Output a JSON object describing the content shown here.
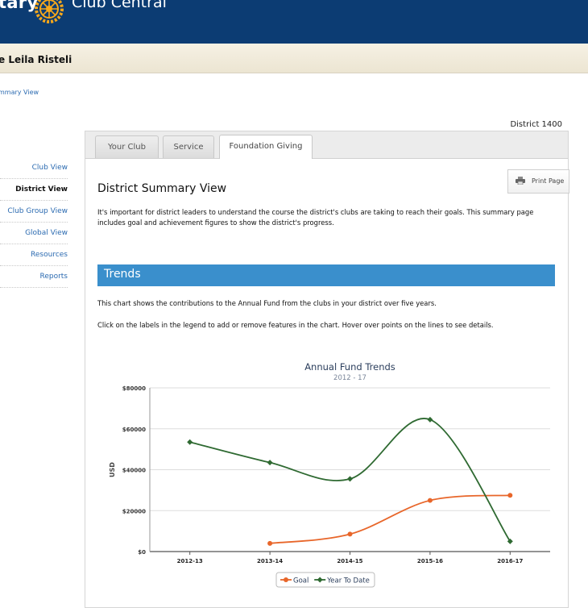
{
  "header": {
    "brand": "tary",
    "app_title": "Club Central"
  },
  "user": {
    "name": "e Leila Risteli"
  },
  "breadcrumb": "mmary View",
  "district_label": "District 1400",
  "sidebar": {
    "items": [
      {
        "label": "Club View",
        "active": false
      },
      {
        "label": "District View",
        "active": true
      },
      {
        "label": "Club Group View",
        "active": false
      },
      {
        "label": "Global View",
        "active": false
      },
      {
        "label": "Resources",
        "active": false
      },
      {
        "label": "Reports",
        "active": false
      }
    ]
  },
  "tabs": [
    {
      "label": "Your Club",
      "active": false
    },
    {
      "label": "Service",
      "active": false
    },
    {
      "label": "Foundation Giving",
      "active": true
    }
  ],
  "print_label": "Print Page",
  "page_title": "District Summary View",
  "intro": "It's important for district leaders to understand the course the district's clubs are taking to reach their goals. This summary page includes goal and achievement figures to show the district's progress.",
  "section_title": "Trends",
  "description1": "This chart shows the contributions to the Annual Fund from the clubs in your district over five years.",
  "description2": "Click on the labels in the legend to add or remove features in the chart. Hover over points on the lines to see details.",
  "colors": {
    "header": "#0c3c73",
    "section": "#3a8fcc",
    "link": "#2c6bb1",
    "goal": "#e8662a",
    "ytd": "#2f6a32"
  },
  "chart_data": {
    "type": "line",
    "title": "Annual Fund Trends",
    "subtitle": "2012 - 17",
    "xlabel": "",
    "ylabel": "USD",
    "categories": [
      "2012-13",
      "2013-14",
      "2014-15",
      "2015-16",
      "2016-17"
    ],
    "ylim": [
      0,
      80000
    ],
    "yticks": [
      0,
      20000,
      40000,
      60000,
      80000
    ],
    "ytick_labels": [
      "$0",
      "$20000",
      "$40000",
      "$60000",
      "$80000"
    ],
    "grid": true,
    "legend": "bottom-center",
    "series": [
      {
        "name": "Goal",
        "color": "#e8662a",
        "marker": "circle",
        "values": [
          null,
          4000,
          8500,
          25000,
          27500
        ]
      },
      {
        "name": "Year To Date",
        "color": "#2f6a32",
        "marker": "diamond",
        "values": [
          53500,
          43500,
          35500,
          64500,
          5000
        ]
      }
    ]
  }
}
